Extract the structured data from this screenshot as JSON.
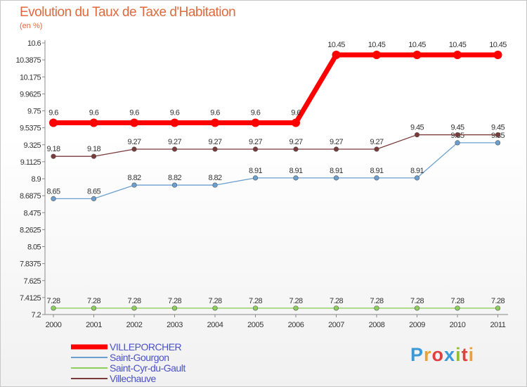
{
  "title": "Evolution du Taux de Taxe d'Habitation",
  "subtitle": "(en %)",
  "logo": {
    "text": "Proxiti",
    "letter_colors": [
      "#3a9ad9",
      "#f0a030",
      "#e04040",
      "#3a9ad9",
      "#90c030",
      "#e04040",
      "#f0a030"
    ]
  },
  "chart_data": {
    "type": "line",
    "title": "Evolution du Taux de Taxe d'Habitation",
    "ylabel": "(en %)",
    "xlabel": "",
    "x": [
      "2000",
      "2001",
      "2002",
      "2003",
      "2004",
      "2005",
      "2006",
      "2007",
      "2008",
      "2009",
      "2010",
      "2011"
    ],
    "ylim": [
      7.2,
      10.6
    ],
    "yticks": [
      "7.2",
      "7.4125",
      "7.625",
      "7.8375",
      "8.05",
      "8.2625",
      "8.475",
      "8.6875",
      "8.9",
      "9.1125",
      "9.325",
      "9.5375",
      "9.75",
      "9.9625",
      "10.175",
      "10.3875",
      "10.6"
    ],
    "grid": false,
    "legend_position": "bottom-left",
    "series": [
      {
        "name": "VILLEPORCHER",
        "color": "#ff0000",
        "thick": true,
        "values": [
          9.6,
          9.6,
          9.6,
          9.6,
          9.6,
          9.6,
          9.6,
          10.45,
          10.45,
          10.45,
          10.45,
          10.45
        ],
        "labels": [
          "9.6",
          "9.6",
          "9.6",
          "9.6",
          "9.6",
          "9.6",
          "9.6",
          "10.45",
          "10.45",
          "10.45",
          "10.45",
          "10.45"
        ]
      },
      {
        "name": "Saint-Gourgon",
        "color": "#6a9fcf",
        "thick": false,
        "values": [
          8.65,
          8.65,
          8.82,
          8.82,
          8.82,
          8.91,
          8.91,
          8.91,
          8.91,
          8.91,
          9.35,
          9.35
        ],
        "labels": [
          "8.65",
          "8.65",
          "8.82",
          "8.82",
          "8.82",
          "8.91",
          "8.91",
          "8.91",
          "8.91",
          "8.91",
          "9.35",
          "9.35"
        ]
      },
      {
        "name": "Saint-Cyr-du-Gault",
        "color": "#8ccf5a",
        "thick": false,
        "values": [
          7.28,
          7.28,
          7.28,
          7.28,
          7.28,
          7.28,
          7.28,
          7.28,
          7.28,
          7.28,
          7.28,
          7.28
        ],
        "labels": [
          "7.28",
          "7.28",
          "7.28",
          "7.28",
          "7.28",
          "7.28",
          "7.28",
          "7.28",
          "7.28",
          "7.28",
          "7.28",
          "7.28"
        ]
      },
      {
        "name": "Villechauve",
        "color": "#7a3a3a",
        "thick": false,
        "values": [
          9.18,
          9.18,
          9.27,
          9.27,
          9.27,
          9.27,
          9.27,
          9.27,
          9.27,
          9.45,
          9.45,
          9.45
        ],
        "labels": [
          "9.18",
          "9.18",
          "9.27",
          "9.27",
          "9.27",
          "9.27",
          "9.27",
          "9.27",
          "9.27",
          "9.45",
          "9.45",
          "9.45"
        ]
      }
    ]
  }
}
